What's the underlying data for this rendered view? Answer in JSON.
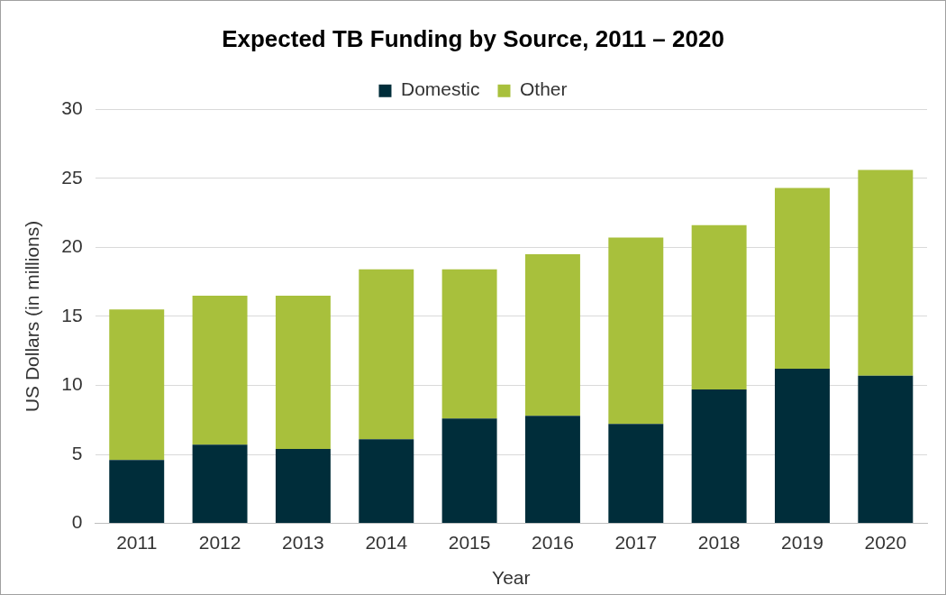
{
  "chart_data": {
    "type": "bar",
    "title": "Expected TB Funding by Source, 2011 – 2020",
    "xlabel": "Year",
    "ylabel": "US Dollars (in millions)",
    "categories": [
      "2011",
      "2012",
      "2013",
      "2014",
      "2015",
      "2016",
      "2017",
      "2018",
      "2019",
      "2020"
    ],
    "series": [
      {
        "name": "Domestic",
        "color": "#002d3a",
        "values": [
          4.6,
          5.7,
          5.4,
          6.1,
          7.6,
          7.8,
          7.2,
          9.7,
          11.2,
          10.7
        ]
      },
      {
        "name": "Other",
        "color": "#a8c03c",
        "values": [
          10.9,
          10.8,
          11.1,
          12.3,
          10.8,
          11.7,
          13.5,
          11.9,
          13.1,
          14.9
        ]
      }
    ],
    "stacked": true,
    "ylim": [
      0,
      30
    ],
    "yticks": [
      0,
      5,
      10,
      15,
      20,
      25,
      30
    ],
    "grid": "y",
    "legend": "top"
  }
}
